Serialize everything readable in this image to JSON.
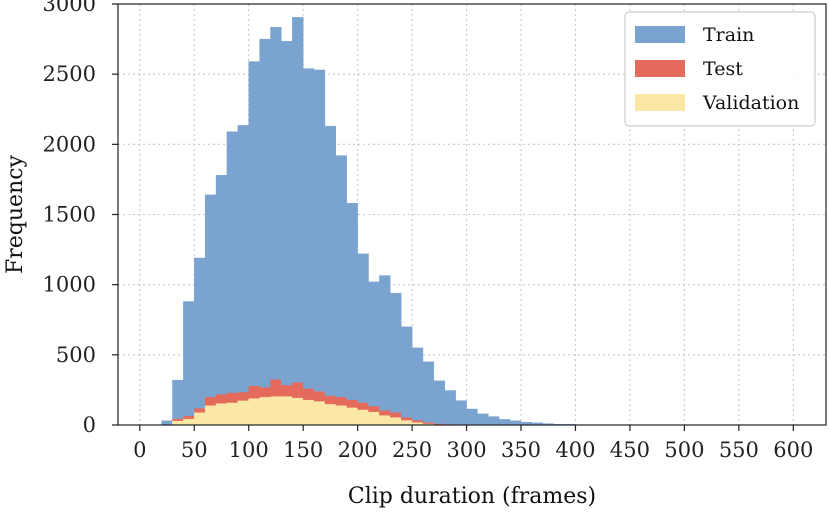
{
  "chart_data": {
    "type": "bar",
    "subtype": "stacked histogram",
    "title": "",
    "xlabel": "Clip duration (frames)",
    "ylabel": "Frequency",
    "xlim": [
      -20,
      630
    ],
    "ylim": [
      0,
      3000
    ],
    "xticks": [
      0,
      50,
      100,
      150,
      200,
      250,
      300,
      350,
      400,
      450,
      500,
      550,
      600
    ],
    "yticks": [
      0,
      500,
      1000,
      1500,
      2000,
      2500,
      3000
    ],
    "grid": true,
    "legend_position": "top-right",
    "bin_width": 10,
    "bin_starts": [
      20,
      30,
      40,
      50,
      60,
      70,
      80,
      90,
      100,
      110,
      120,
      130,
      140,
      150,
      160,
      170,
      180,
      190,
      200,
      210,
      220,
      230,
      240,
      250,
      260,
      270,
      280,
      290,
      300,
      310,
      320,
      330,
      340,
      350,
      360,
      370,
      380,
      390
    ],
    "series": [
      {
        "name": "Validation",
        "color": "#fbe7a6",
        "values": [
          0,
          30,
          45,
          90,
          140,
          155,
          160,
          175,
          190,
          200,
          205,
          205,
          195,
          180,
          170,
          150,
          140,
          125,
          110,
          95,
          70,
          55,
          35,
          20,
          10,
          5,
          3,
          2,
          1,
          0,
          0,
          0,
          0,
          0,
          0,
          0,
          0,
          0
        ]
      },
      {
        "name": "Test",
        "color": "#e46b5c",
        "values": [
          0,
          15,
          20,
          30,
          60,
          65,
          70,
          60,
          90,
          70,
          120,
          80,
          110,
          80,
          70,
          60,
          60,
          55,
          50,
          40,
          35,
          35,
          20,
          15,
          10,
          5,
          3,
          2,
          1,
          0,
          0,
          0,
          0,
          0,
          0,
          0,
          0,
          0
        ]
      },
      {
        "name": "Train",
        "color": "#7ba3d0",
        "values": [
          30,
          275,
          815,
          1070,
          1440,
          1560,
          1860,
          1900,
          2310,
          2480,
          2510,
          2450,
          2600,
          2280,
          2290,
          1920,
          1720,
          1400,
          1060,
          885,
          960,
          850,
          645,
          515,
          430,
          305,
          240,
          170,
          112,
          80,
          60,
          40,
          30,
          20,
          15,
          10,
          5,
          5
        ]
      }
    ],
    "legend_order": [
      "Train",
      "Test",
      "Validation"
    ]
  }
}
